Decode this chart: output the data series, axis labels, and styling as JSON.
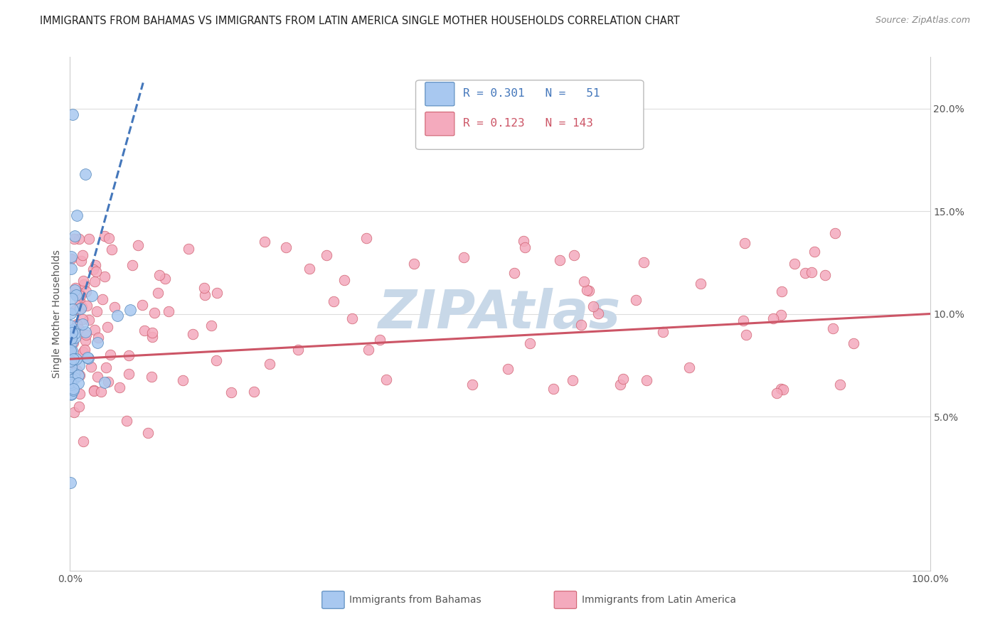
{
  "title": "IMMIGRANTS FROM BAHAMAS VS IMMIGRANTS FROM LATIN AMERICA SINGLE MOTHER HOUSEHOLDS CORRELATION CHART",
  "source": "Source: ZipAtlas.com",
  "ylabel": "Single Mother Households",
  "right_yticks": [
    0.05,
    0.1,
    0.15,
    0.2
  ],
  "right_yticklabels": [
    "5.0%",
    "10.0%",
    "15.0%",
    "20.0%"
  ],
  "legend_label1": "Immigrants from Bahamas",
  "legend_label2": "Immigrants from Latin America",
  "bahamas_color": "#a8c8f0",
  "bahamas_edge_color": "#5588bb",
  "latin_color": "#f4aabd",
  "latin_edge_color": "#d06070",
  "trendline1_color": "#4477bb",
  "trendline2_color": "#cc5566",
  "watermark": "ZIPAtlas",
  "watermark_color": "#c8d8e8",
  "legend_text_color1": "#4477bb",
  "legend_text_color2": "#cc5566",
  "xlim": [
    0.0,
    1.0
  ],
  "ylim": [
    -0.025,
    0.225
  ],
  "grid_color": "#dddddd",
  "spine_color": "#cccccc",
  "title_color": "#222222",
  "source_color": "#888888",
  "tick_label_color": "#555555",
  "legend_box_edge": "#bbbbbb"
}
